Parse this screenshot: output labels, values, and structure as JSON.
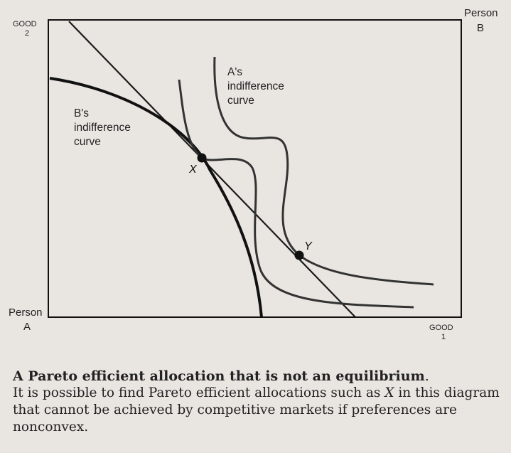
{
  "diagram": {
    "good2_label": "GOOD",
    "good2_num": "2",
    "person_b_line1": "Person",
    "person_b_line2": "B",
    "person_a_line1": "Person",
    "person_a_line2": "A",
    "good1_label": "GOOD",
    "good1_num": "1",
    "a_curve_line1": "A's",
    "a_curve_line2": "indifference",
    "a_curve_line3": "curve",
    "b_curve_line1": "B's",
    "b_curve_line2": "indifference",
    "b_curve_line3": "curve",
    "point_x": "X",
    "point_y": "Y"
  },
  "caption": {
    "title": "A Pareto efficient allocation that is not an equilibrium",
    "title_end": ".",
    "body_text": "It is possible to find Pareto efficient allocations such as",
    "body_var": "X",
    "body_rest": "in this diagram that cannot be achieved by competitive markets if preferences are nonconvex."
  }
}
